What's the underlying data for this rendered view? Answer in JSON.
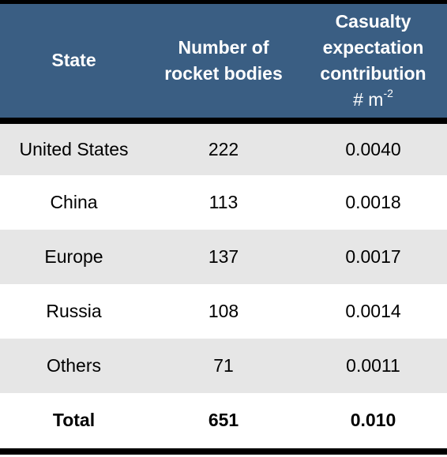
{
  "table": {
    "headers": {
      "state": "State",
      "rocket_bodies_line1": "Number of",
      "rocket_bodies_line2": "rocket bodies",
      "casualty_line1": "Casualty",
      "casualty_line2": "expectation",
      "casualty_line3": "contribution",
      "casualty_unit_base": "# m",
      "casualty_unit_exp": "-2"
    },
    "rows": [
      {
        "state": "United States",
        "rocket_bodies": "222",
        "casualty": "0.0040"
      },
      {
        "state": "China",
        "rocket_bodies": "113",
        "casualty": "0.0018"
      },
      {
        "state": "Europe",
        "rocket_bodies": "137",
        "casualty": "0.0017"
      },
      {
        "state": "Russia",
        "rocket_bodies": "108",
        "casualty": "0.0014"
      },
      {
        "state": "Others",
        "rocket_bodies": "71",
        "casualty": "0.0011"
      }
    ],
    "total": {
      "state": "Total",
      "rocket_bodies": "651",
      "casualty": "0.010"
    }
  },
  "colors": {
    "header_bg": "#3a5e83",
    "header_text": "#ffffff",
    "row_shade": "#e6e6e6",
    "row_plain": "#ffffff",
    "rule": "#000000"
  }
}
